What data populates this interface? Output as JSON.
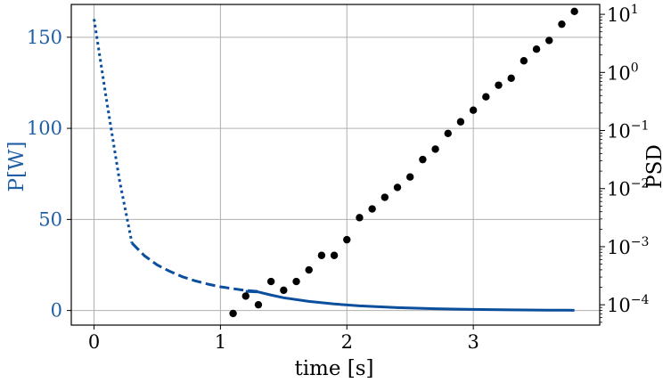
{
  "chart_data": {
    "type": "line",
    "title": "",
    "xlabel": "time [s]",
    "ylabel_left": "P[W]",
    "ylabel_right": "PSD",
    "xlim": [
      -0.18,
      4.0
    ],
    "ylim_left": [
      -8,
      168
    ],
    "ylim_right_log10": [
      -4.35,
      1.17
    ],
    "right_scale": "log",
    "grid": true,
    "x_ticks": [
      {
        "value": 0,
        "label": "0"
      },
      {
        "value": 1,
        "label": "1"
      },
      {
        "value": 2,
        "label": "2"
      },
      {
        "value": 3,
        "label": "3"
      }
    ],
    "y_left_ticks": [
      {
        "value": 0,
        "label": "0"
      },
      {
        "value": 50,
        "label": "50"
      },
      {
        "value": 100,
        "label": "100"
      },
      {
        "value": 150,
        "label": "150"
      }
    ],
    "y_right_ticks": [
      {
        "exp": -4,
        "base": "10",
        "sup": "−4"
      },
      {
        "exp": -3,
        "base": "10",
        "sup": "−3"
      },
      {
        "exp": -2,
        "base": "10",
        "sup": "−2"
      },
      {
        "exp": -1,
        "base": "10",
        "sup": "−1"
      },
      {
        "exp": 0,
        "base": "10",
        "sup": "0"
      },
      {
        "exp": 1,
        "base": "10",
        "sup": "1"
      }
    ],
    "colors": {
      "power": "#0a4f9e",
      "psd": "#000000",
      "left_axis_text": "#1f5fa6",
      "grid": "#b0b0b0"
    },
    "series": [
      {
        "axis": "left",
        "style": "dotted",
        "x": [
          0,
          0.1,
          0.2,
          0.3
        ],
        "y": [
          160,
          115,
          72,
          37
        ]
      },
      {
        "axis": "left",
        "style": "dashed",
        "x": [
          0.3,
          0.4,
          0.5,
          0.6,
          0.7,
          0.8,
          0.9,
          1.0,
          1.1,
          1.2,
          1.3
        ],
        "y": [
          37,
          30,
          25,
          21.5,
          18.5,
          16.3,
          14.5,
          13,
          12,
          11,
          10.5
        ]
      },
      {
        "axis": "left",
        "style": "solid",
        "x": [
          1.2,
          1.3,
          1.4,
          1.5,
          1.7,
          1.9,
          2.1,
          2.4,
          2.7,
          3.0,
          3.3,
          3.6,
          3.8
        ],
        "y": [
          10.5,
          10.2,
          8.5,
          7,
          5,
          3.6,
          2.6,
          1.6,
          1.0,
          0.6,
          0.35,
          0.2,
          0.15
        ]
      },
      {
        "axis": "right",
        "style": "markers",
        "x": [
          1.1,
          1.2,
          1.3,
          1.4,
          1.5,
          1.6,
          1.7,
          1.8,
          1.9,
          2.0,
          2.1,
          2.2,
          2.3,
          2.4,
          2.5,
          2.6,
          2.7,
          2.8,
          2.9,
          3.0,
          3.1,
          3.2,
          3.3,
          3.4,
          3.5,
          3.6,
          3.7,
          3.8
        ],
        "y_log10": [
          -4.15,
          -3.85,
          -4.0,
          -3.6,
          -3.75,
          -3.6,
          -3.4,
          -3.15,
          -3.15,
          -2.88,
          -2.5,
          -2.35,
          -2.15,
          -1.98,
          -1.8,
          -1.5,
          -1.32,
          -1.05,
          -0.85,
          -0.65,
          -0.42,
          -0.22,
          -0.1,
          0.2,
          0.4,
          0.55,
          0.83,
          1.05
        ]
      }
    ]
  }
}
